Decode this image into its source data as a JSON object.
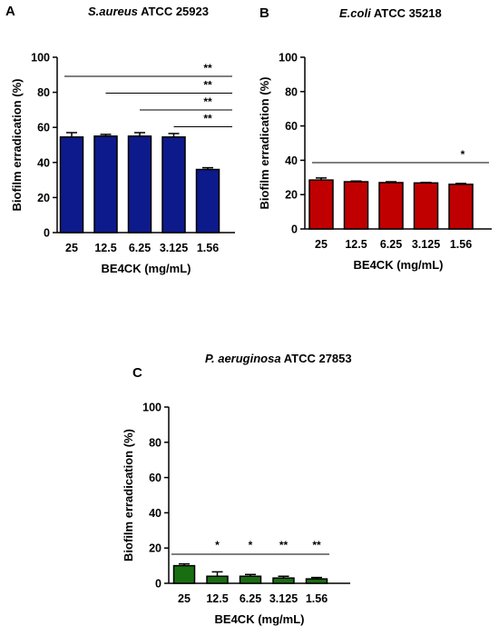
{
  "chart_data": [
    {
      "type": "bar",
      "panel": "A",
      "title_organism": "S.aureus",
      "title_strain": "ATCC 25923",
      "xlabel": "BE4CK (mg/mL)",
      "ylabel": "Biofilm erradication (%)",
      "ylim": [
        0,
        100
      ],
      "yticks": [
        "0",
        "20",
        "40",
        "60",
        "80",
        "100"
      ],
      "categories": [
        "25",
        "12.5",
        "6.25",
        "3.125",
        "1.56"
      ],
      "values": [
        54.5,
        55,
        55,
        54.5,
        36
      ],
      "errors": [
        2.5,
        1,
        2,
        2,
        1
      ],
      "bar_color": "#0d1a8c",
      "significance": [
        {
          "from": "25",
          "to": "1.56",
          "label": "**"
        },
        {
          "from": "12.5",
          "to": "1.56",
          "label": "**"
        },
        {
          "from": "6.25",
          "to": "1.56",
          "label": "**"
        },
        {
          "from": "3.125",
          "to": "1.56",
          "label": "**"
        }
      ]
    },
    {
      "type": "bar",
      "panel": "B",
      "title_organism": "E.coli",
      "title_strain": "ATCC 35218",
      "xlabel": "BE4CK (mg/mL)",
      "ylabel": "Biofilm erradication (%)",
      "ylim": [
        0,
        100
      ],
      "yticks": [
        "0",
        "20",
        "40",
        "60",
        "80",
        "100"
      ],
      "categories": [
        "25",
        "12.5",
        "6.25",
        "3.125",
        "1.56"
      ],
      "values": [
        28.5,
        27.5,
        27,
        26.8,
        26
      ],
      "errors": [
        1.2,
        0.4,
        0.5,
        0.3,
        0.5
      ],
      "bar_color": "#c00000",
      "significance": [
        {
          "from": "25",
          "to": "1.56",
          "label": "*"
        }
      ]
    },
    {
      "type": "bar",
      "panel": "C",
      "title_organism": "P. aeruginosa",
      "title_strain": "ATCC 27853",
      "xlabel": "BE4CK (mg/mL)",
      "ylabel": "Biofilm erradication (%)",
      "ylim": [
        0,
        100
      ],
      "yticks": [
        "0",
        "20",
        "40",
        "60",
        "80",
        "100"
      ],
      "categories": [
        "25",
        "12.5",
        "6.25",
        "3.125",
        "1.56"
      ],
      "values": [
        10,
        4,
        4,
        3,
        2.5
      ],
      "errors": [
        1,
        2.5,
        1,
        1,
        0.8
      ],
      "bar_color": "#1a6e12",
      "significance": [
        {
          "from": "25",
          "to": "1.56",
          "label": ""
        }
      ],
      "bar_labels": [
        "",
        "*",
        "*",
        "**",
        "**"
      ]
    }
  ]
}
